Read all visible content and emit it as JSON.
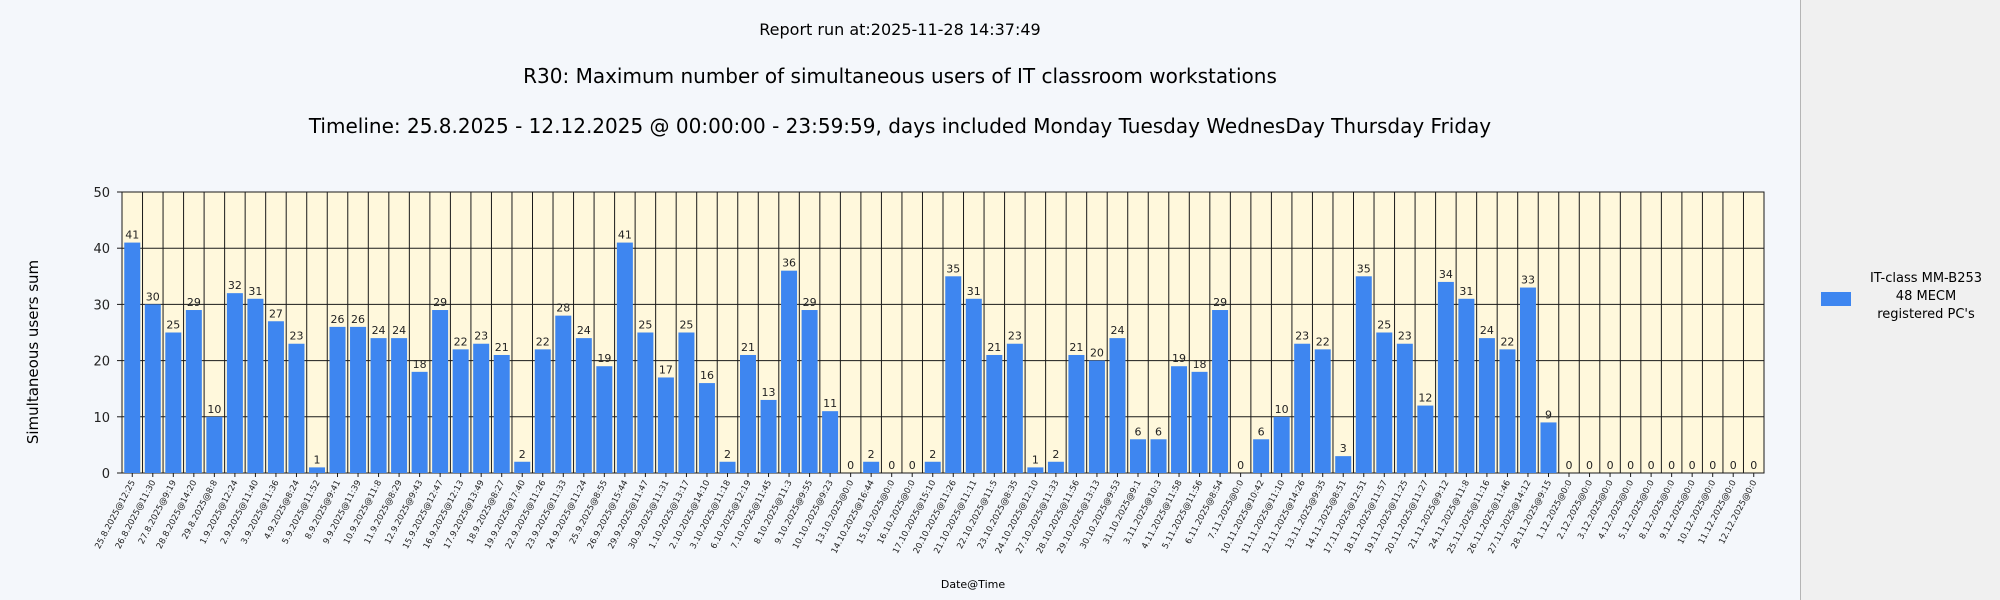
{
  "header": {
    "run_line": "Report run at:2025-11-28 14:37:49",
    "title": "R30: Maximum number of simultaneous users of IT classroom workstations",
    "timeline": "Timeline: 25.8.2025  - 12.12.2025  @  00:00:00 -  23:59:59, days included Monday Tuesday WednesDay Thursday Friday"
  },
  "legend": {
    "lines": [
      "IT-class MM-B253",
      "48 MECM",
      "registered PC's"
    ]
  },
  "chart_data": {
    "type": "bar",
    "title": "R30: Maximum number of simultaneous users of IT classroom workstations",
    "xlabel": "Date@Time",
    "ylabel": "Simultaneous users sum",
    "ylim": [
      0,
      50
    ],
    "yticks": [
      0,
      10,
      20,
      30,
      40,
      50
    ],
    "grid": true,
    "legend_position": "right",
    "bar_color": "#3e86f0",
    "plot_background": "#fff8dc",
    "categories": [
      "25.8.2025@12:25",
      "26.8.2025@11:30",
      "27.8.2025@9:19",
      "28.8.2025@14:20",
      "29.8.2025@8:8",
      "1.9.2025@12:24",
      "2.9.2025@11:40",
      "3.9.2025@11:36",
      "4.9.2025@8:24",
      "5.9.2025@11:52",
      "8.9.2025@9:41",
      "9.9.2025@11:39",
      "10.9.2025@11:8",
      "11.9.2025@8:29",
      "12.9.2025@9:43",
      "15.9.2025@12:47",
      "16.9.2025@12:13",
      "17.9.2025@13:49",
      "18.9.2025@8:27",
      "19.9.2025@17:40",
      "22.9.2025@11:26",
      "23.9.2025@11:33",
      "24.9.2025@11:24",
      "25.9.2025@8:55",
      "26.9.2025@15:44",
      "29.9.2025@11:47",
      "30.9.2025@11:31",
      "1.10.2025@13:17",
      "2.10.2025@14:10",
      "3.10.2025@11:18",
      "6.10.2025@12:19",
      "7.10.2025@11:45",
      "8.10.2025@11:3",
      "9.10.2025@9:55",
      "10.10.2025@9:23",
      "13.10.2025@0:0",
      "14.10.2025@16:44",
      "15.10.2025@0:0",
      "16.10.2025@0:0",
      "17.10.2025@15:10",
      "20.10.2025@11:26",
      "21.10.2025@11:11",
      "22.10.2025@11:5",
      "23.10.2025@8:35",
      "24.10.2025@12:10",
      "27.10.2025@11:33",
      "28.10.2025@11:56",
      "29.10.2025@13:13",
      "30.10.2025@9:53",
      "31.10.2025@9:1",
      "3.11.2025@10:3",
      "4.11.2025@11:58",
      "5.11.2025@11:56",
      "6.11.2025@8:54",
      "7.11.2025@0:0",
      "10.11.2025@10:42",
      "11.11.2025@11:10",
      "12.11.2025@14:26",
      "13.11.2025@9:35",
      "14.11.2025@8:51",
      "17.11.2025@12:51",
      "18.11.2025@11:57",
      "19.11.2025@11:25",
      "20.11.2025@11:27",
      "21.11.2025@9:12",
      "24.11.2025@11:8",
      "25.11.2025@11:16",
      "26.11.2025@11:46",
      "27.11.2025@14:12",
      "28.11.2025@9:15",
      "1.12.2025@0:0",
      "2.12.2025@0:0",
      "3.12.2025@0:0",
      "4.12.2025@0:0",
      "5.12.2025@0:0",
      "8.12.2025@0:0",
      "9.12.2025@0:0",
      "10.12.2025@0:0",
      "11.12.2025@0:0",
      "12.12.2025@0:0"
    ],
    "series": [
      {
        "name": "IT-class MM-B253 48 MECM registered PC's",
        "values": [
          41,
          30,
          25,
          29,
          10,
          32,
          31,
          27,
          23,
          1,
          26,
          26,
          24,
          24,
          18,
          29,
          22,
          23,
          21,
          2,
          22,
          28,
          24,
          19,
          41,
          25,
          17,
          25,
          16,
          2,
          21,
          13,
          36,
          29,
          11,
          0,
          2,
          0,
          0,
          2,
          35,
          31,
          21,
          23,
          1,
          2,
          21,
          20,
          24,
          6,
          6,
          19,
          18,
          29,
          0,
          6,
          10,
          23,
          22,
          3,
          35,
          25,
          23,
          12,
          34,
          31,
          24,
          22,
          33,
          9,
          0,
          0,
          0,
          0,
          0,
          0,
          0,
          0,
          0,
          0
        ]
      }
    ]
  }
}
